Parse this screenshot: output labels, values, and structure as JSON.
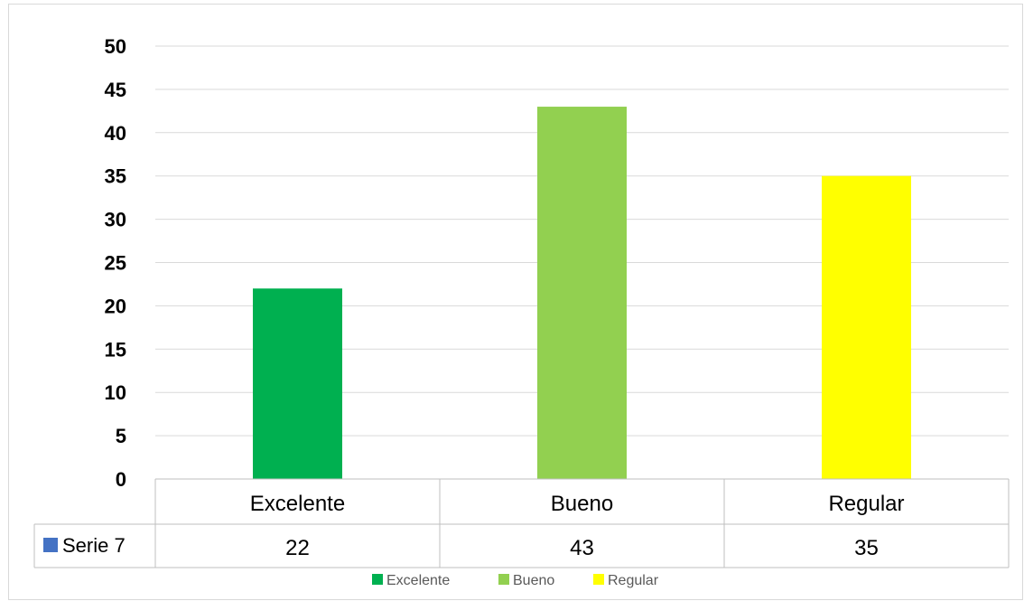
{
  "chart_data": {
    "type": "bar",
    "title": "",
    "categories": [
      "Excelente",
      "Bueno",
      "Regular"
    ],
    "series": [
      {
        "name": "Serie 7",
        "values": [
          22,
          43,
          35
        ],
        "color": "#4472c4"
      }
    ],
    "point_colors": [
      "#00b050",
      "#92d050",
      "#ffff00"
    ],
    "ylim": [
      0,
      50
    ],
    "yticks": [
      0,
      5,
      10,
      15,
      20,
      25,
      30,
      35,
      40,
      45,
      50
    ],
    "grid": true,
    "data_table": true,
    "legend": {
      "placement": "bottom",
      "entries": [
        "Excelente",
        "Bueno",
        "Regular"
      ]
    }
  }
}
